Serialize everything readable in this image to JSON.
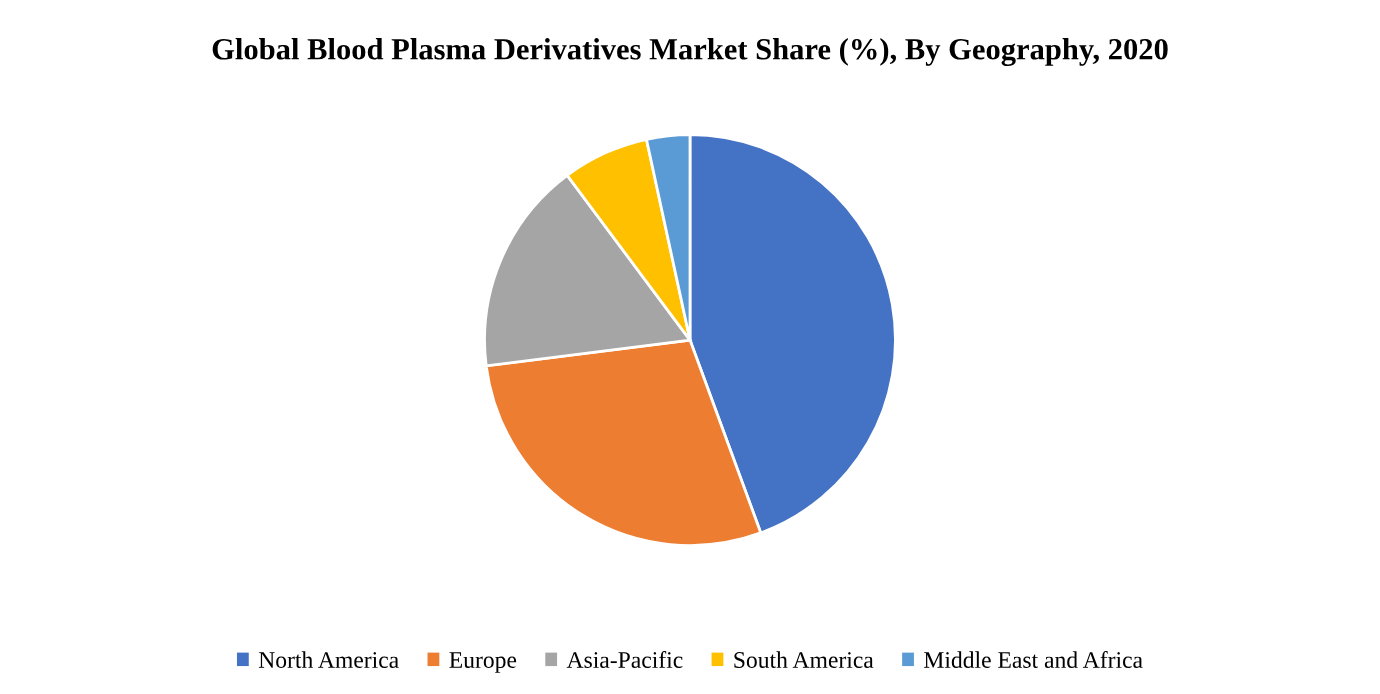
{
  "chart_data": {
    "type": "pie",
    "title": "Global Blood Plasma Derivatives Market Share (%), By Geography, 2020",
    "categories": [
      "North America",
      "Europe",
      "Asia-Pacific",
      "South America",
      "Middle East and Africa"
    ],
    "values": [
      44.4,
      28.6,
      16.8,
      6.8,
      3.4
    ],
    "colors": [
      "#4472c4",
      "#ed7d31",
      "#a5a5a5",
      "#ffc000",
      "#5b9bd5"
    ],
    "legend": "bottom"
  }
}
